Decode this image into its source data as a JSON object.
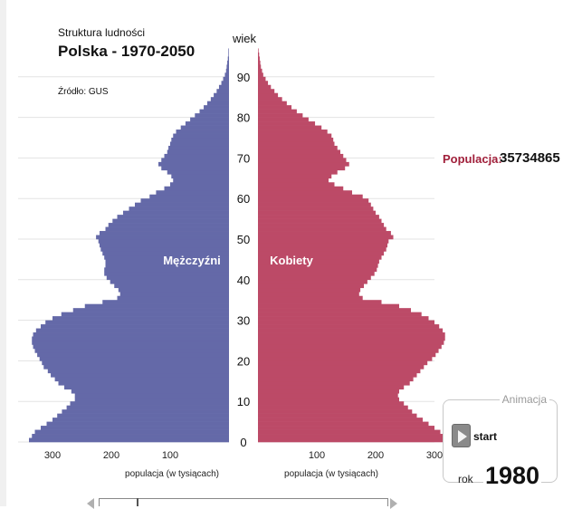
{
  "header": {
    "subtitle": "Struktura ludności",
    "title": "Polska - 1970-2050",
    "source": "Źródło: GUS"
  },
  "population": {
    "label": "Populacja:",
    "value": "35734865"
  },
  "animation": {
    "title": "Animacja",
    "start_label": "start",
    "year_label": "rok",
    "year": "1980"
  },
  "colors": {
    "male": "#6469a8",
    "female": "#bc4a67",
    "grid": "#e3e3e3",
    "accent": "#a01f3a"
  },
  "chart_data": {
    "type": "bar",
    "orientation": "horizontal-population-pyramid",
    "y_axis_label": "wiek",
    "y_ticks": [
      "0",
      "10",
      "20",
      "30",
      "40",
      "50",
      "60",
      "70",
      "80",
      "90"
    ],
    "x_ticks_left": [
      "300",
      "200",
      "100"
    ],
    "x_ticks_right": [
      "100",
      "200",
      "300"
    ],
    "x_label_left": "populacja (w tysiącach)",
    "x_label_right": "populacja (w tysiącach)",
    "x_range": [
      0,
      300
    ],
    "y_range": [
      0,
      100
    ],
    "grid": true,
    "ages": [
      0,
      1,
      2,
      3,
      4,
      5,
      6,
      7,
      8,
      9,
      10,
      11,
      12,
      13,
      14,
      15,
      16,
      17,
      18,
      19,
      20,
      21,
      22,
      23,
      24,
      25,
      26,
      27,
      28,
      29,
      30,
      31,
      32,
      33,
      34,
      35,
      36,
      37,
      38,
      39,
      40,
      41,
      42,
      43,
      44,
      45,
      46,
      47,
      48,
      49,
      50,
      51,
      52,
      53,
      54,
      55,
      56,
      57,
      58,
      59,
      60,
      61,
      62,
      63,
      64,
      65,
      66,
      67,
      68,
      69,
      70,
      71,
      72,
      73,
      74,
      75,
      76,
      77,
      78,
      79,
      80,
      81,
      82,
      83,
      84,
      85,
      86,
      87,
      88,
      89,
      90,
      91,
      92,
      93,
      94,
      95,
      96,
      97,
      98,
      99,
      100
    ],
    "series": [
      {
        "name": "Mężczyźni",
        "values": [
          340,
          335,
          330,
          320,
          310,
          300,
          292,
          284,
          276,
          270,
          262,
          262,
          268,
          280,
          290,
          296,
          303,
          308,
          315,
          318,
          322,
          326,
          330,
          333,
          335,
          335,
          333,
          328,
          320,
          312,
          300,
          285,
          265,
          245,
          215,
          190,
          185,
          188,
          195,
          202,
          208,
          212,
          212,
          210,
          210,
          212,
          215,
          218,
          220,
          222,
          226,
          220,
          210,
          205,
          198,
          190,
          180,
          170,
          160,
          150,
          135,
          124,
          110,
          100,
          95,
          98,
          105,
          115,
          120,
          115,
          110,
          105,
          103,
          100,
          98,
          95,
          90,
          82,
          74,
          66,
          58,
          50,
          43,
          37,
          31,
          26,
          21,
          17,
          13,
          10,
          7,
          5,
          4,
          3,
          2,
          1,
          1,
          0,
          0,
          0,
          0
        ]
      },
      {
        "name": "Kobiety",
        "values": [
          325,
          318,
          310,
          300,
          290,
          280,
          270,
          262,
          255,
          248,
          240,
          238,
          240,
          248,
          258,
          264,
          270,
          276,
          282,
          288,
          296,
          302,
          307,
          312,
          316,
          318,
          318,
          314,
          308,
          300,
          290,
          278,
          260,
          240,
          210,
          178,
          172,
          174,
          180,
          186,
          192,
          198,
          202,
          204,
          206,
          210,
          214,
          218,
          220,
          222,
          230,
          226,
          218,
          214,
          210,
          206,
          200,
          196,
          192,
          188,
          178,
          160,
          145,
          130,
          120,
          125,
          135,
          148,
          155,
          150,
          145,
          140,
          135,
          130,
          128,
          125,
          118,
          108,
          97,
          86,
          76,
          66,
          57,
          49,
          41,
          34,
          28,
          22,
          17,
          13,
          9,
          7,
          5,
          4,
          3,
          2,
          1,
          0,
          0,
          0,
          0
        ]
      }
    ],
    "annotations": [
      "Mężczyźni",
      "Kobiety"
    ]
  }
}
